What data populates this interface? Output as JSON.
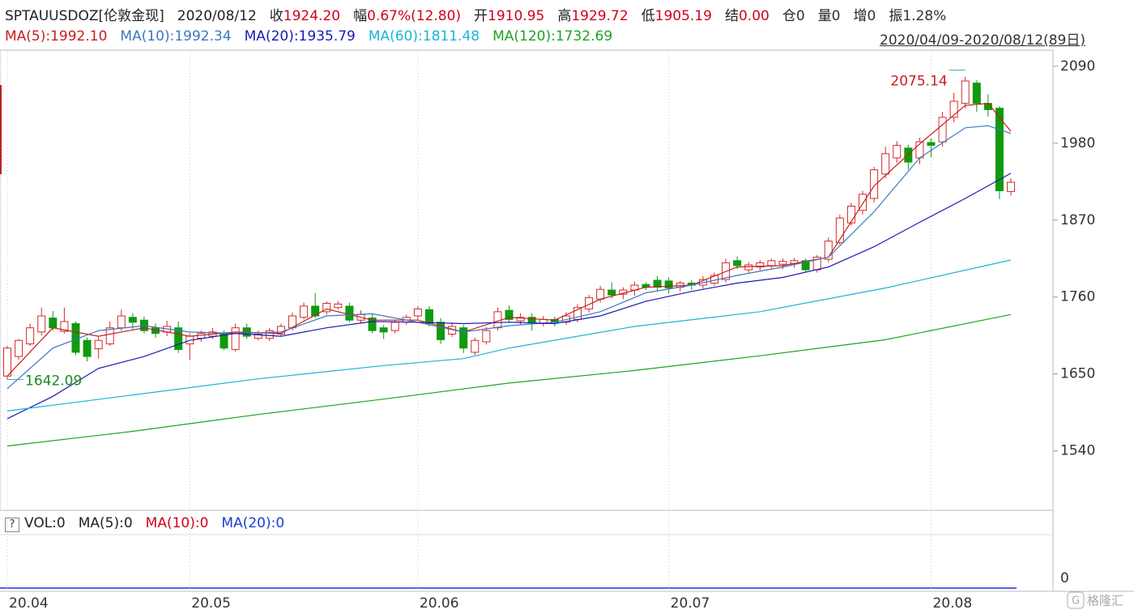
{
  "header": {
    "symbol": "SPTAUUSDOZ[伦敦金现]",
    "date": "2020/08/12",
    "items": [
      {
        "label": "收",
        "value": "1924.20",
        "color": "#d0021b"
      },
      {
        "label": "幅",
        "value": "0.67%(12.80)",
        "color": "#d0021b"
      },
      {
        "label": "开",
        "value": "1910.95",
        "color": "#d0021b"
      },
      {
        "label": "高",
        "value": "1929.72",
        "color": "#d0021b"
      },
      {
        "label": "低",
        "value": "1905.19",
        "color": "#d0021b"
      },
      {
        "label": "结",
        "value": "0.00",
        "color": "#d0021b"
      },
      {
        "label": "仓",
        "value": "0",
        "color": "#333333"
      },
      {
        "label": "量",
        "value": "0",
        "color": "#333333"
      },
      {
        "label": "增",
        "value": "0",
        "color": "#333333"
      },
      {
        "label": "振",
        "value": "1.28%",
        "color": "#333333"
      }
    ]
  },
  "date_range": "2020/04/09-2020/08/12(89日)",
  "watermark": "格隆汇",
  "volume_panel": {
    "legend": [
      {
        "text": "VOL:0",
        "color": "#222222"
      },
      {
        "text": "MA(5):0",
        "color": "#222222"
      },
      {
        "text": "MA(10):0",
        "color": "#d0021b"
      },
      {
        "text": "MA(20):0",
        "color": "#1a3fd6"
      }
    ],
    "yticks": [
      0
    ]
  },
  "chart_data": {
    "type": "candlestick",
    "categories": [
      "20.04",
      null,
      null,
      null,
      null,
      null,
      null,
      null,
      null,
      null,
      null,
      null,
      null,
      null,
      null,
      null,
      "20.05",
      null,
      null,
      null,
      null,
      null,
      null,
      null,
      null,
      null,
      null,
      null,
      null,
      null,
      null,
      null,
      null,
      null,
      null,
      null,
      "20.06",
      null,
      null,
      null,
      null,
      null,
      null,
      null,
      null,
      null,
      null,
      null,
      null,
      null,
      null,
      null,
      null,
      null,
      null,
      null,
      null,
      null,
      "20.07",
      null,
      null,
      null,
      null,
      null,
      null,
      null,
      null,
      null,
      null,
      null,
      null,
      null,
      null,
      null,
      null,
      null,
      null,
      null,
      null,
      null,
      null,
      "20.08",
      null,
      null,
      null,
      null,
      null,
      null,
      null
    ],
    "open": [
      1647,
      1675,
      1693,
      1710,
      1730,
      1711,
      1722,
      1698,
      1686,
      1693,
      1716,
      1731,
      1727,
      1716,
      1710,
      1716,
      1693,
      1701,
      1704,
      1708,
      1685,
      1716,
      1701,
      1701,
      1707,
      1716,
      1731,
      1747,
      1739,
      1745,
      1747,
      1727,
      1730,
      1716,
      1712,
      1724,
      1733,
      1742,
      1724,
      1707,
      1716,
      1681,
      1696,
      1716,
      1741,
      1726,
      1731,
      1722,
      1728,
      1724,
      1728,
      1743,
      1757,
      1770,
      1764,
      1770,
      1778,
      1784,
      1783,
      1774,
      1780,
      1777,
      1780,
      1785,
      1812,
      1799,
      1803,
      1805,
      1807,
      1808,
      1812,
      1799,
      1814,
      1838,
      1866,
      1884,
      1901,
      1936,
      1959,
      1973,
      1959,
      1981,
      1982,
      2017,
      2037,
      2066,
      2037,
      2030,
      1910.95
    ],
    "high": [
      1690,
      1700,
      1722,
      1745,
      1740,
      1745,
      1725,
      1702,
      1703,
      1725,
      1742,
      1737,
      1732,
      1722,
      1726,
      1725,
      1708,
      1712,
      1716,
      1712,
      1722,
      1722,
      1712,
      1716,
      1722,
      1738,
      1752,
      1766,
      1754,
      1754,
      1752,
      1741,
      1735,
      1720,
      1728,
      1735,
      1747,
      1747,
      1730,
      1724,
      1720,
      1702,
      1717,
      1745,
      1748,
      1737,
      1737,
      1733,
      1732,
      1738,
      1750,
      1763,
      1776,
      1781,
      1774,
      1782,
      1781,
      1790,
      1788,
      1783,
      1784,
      1790,
      1795,
      1815,
      1818,
      1810,
      1813,
      1815,
      1815,
      1816,
      1815,
      1820,
      1845,
      1878,
      1895,
      1912,
      1946,
      1975,
      1983,
      1978,
      1988,
      1987,
      2025,
      2052,
      2075.14,
      2070,
      2050,
      2033,
      1929.72
    ],
    "low": [
      1642.09,
      1670,
      1690,
      1705,
      1712,
      1708,
      1677,
      1668,
      1672,
      1690,
      1712,
      1714,
      1708,
      1702,
      1704,
      1680,
      1670,
      1696,
      1700,
      1684,
      1682,
      1700,
      1698,
      1697,
      1704,
      1712,
      1728,
      1730,
      1735,
      1742,
      1724,
      1722,
      1708,
      1700,
      1708,
      1720,
      1728,
      1718,
      1693,
      1703,
      1680,
      1677,
      1692,
      1712,
      1724,
      1720,
      1712,
      1718,
      1718,
      1720,
      1724,
      1738,
      1752,
      1758,
      1757,
      1762,
      1770,
      1768,
      1765,
      1768,
      1770,
      1772,
      1776,
      1781,
      1800,
      1795,
      1798,
      1800,
      1800,
      1802,
      1795,
      1795,
      1810,
      1835,
      1862,
      1878,
      1895,
      1930,
      1952,
      1942,
      1950,
      1960,
      1975,
      2010,
      2030,
      2025,
      2018,
      1900,
      1905.19
    ],
    "close": [
      1687,
      1698,
      1716,
      1733,
      1716,
      1725,
      1681,
      1675,
      1698,
      1716,
      1733,
      1724,
      1712,
      1708,
      1718,
      1685,
      1704,
      1708,
      1710,
      1687,
      1716,
      1704,
      1707,
      1712,
      1718,
      1733,
      1747,
      1733,
      1751,
      1750,
      1727,
      1735,
      1712,
      1710,
      1724,
      1731,
      1743,
      1722,
      1699,
      1718,
      1687,
      1698,
      1712,
      1739,
      1728,
      1731,
      1724,
      1728,
      1724,
      1733,
      1745,
      1759,
      1771,
      1763,
      1770,
      1777,
      1774,
      1774,
      1773,
      1780,
      1777,
      1785,
      1791,
      1809,
      1805,
      1806,
      1809,
      1812,
      1811,
      1812,
      1799,
      1817,
      1840,
      1873,
      1890,
      1907,
      1942,
      1965,
      1977,
      1953,
      1982,
      1977,
      2017,
      2040,
      2069,
      2037,
      2028,
      1912,
      1924.2
    ],
    "up_color": "#d42a2a",
    "down_color": "#0f9a0f",
    "ma_series": [
      {
        "name": "MA(5):1992.10",
        "color": "#c81e1e",
        "x": [
          0,
          4,
          8,
          12,
          16,
          20,
          24,
          28,
          32,
          36,
          40,
          44,
          48,
          52,
          56,
          60,
          64,
          68,
          72,
          76,
          80,
          84,
          86,
          88
        ],
        "values": [
          1647,
          1716,
          1704,
          1716,
          1704,
          1710,
          1708,
          1743,
          1727,
          1727,
          1710,
          1731,
          1727,
          1757,
          1774,
          1777,
          1803,
          1805,
          1817,
          1919,
          1979,
          2034,
          2037,
          1997
        ]
      },
      {
        "name": "MA(10):1992.34",
        "color": "#3a78c3",
        "x": [
          0,
          4,
          8,
          12,
          16,
          20,
          24,
          28,
          32,
          36,
          40,
          44,
          48,
          52,
          56,
          60,
          64,
          68,
          72,
          76,
          80,
          84,
          86,
          88
        ],
        "values": [
          1629,
          1687,
          1712,
          1719,
          1710,
          1708,
          1710,
          1733,
          1736,
          1724,
          1710,
          1719,
          1724,
          1739,
          1766,
          1777,
          1791,
          1803,
          1817,
          1882,
          1959,
          2002,
          2005,
          1994
        ]
      },
      {
        "name": "MA(20):1935.79",
        "color": "#1a1ab8",
        "x": [
          0,
          4,
          8,
          12,
          16,
          20,
          24,
          28,
          32,
          36,
          40,
          44,
          48,
          52,
          56,
          60,
          64,
          68,
          72,
          76,
          80,
          84,
          88
        ],
        "values": [
          1586,
          1618,
          1658,
          1675,
          1698,
          1708,
          1704,
          1716,
          1725,
          1724,
          1722,
          1724,
          1722,
          1733,
          1754,
          1768,
          1780,
          1788,
          1803,
          1832,
          1867,
          1901,
          1937
        ]
      },
      {
        "name": "MA(60):1811.48",
        "color": "#1ab5d6",
        "x": [
          0,
          11,
          22,
          33,
          40,
          44,
          55,
          66,
          77,
          88
        ],
        "values": [
          1597,
          1620,
          1643,
          1662,
          1672,
          1687,
          1718,
          1739,
          1773,
          1813
        ]
      },
      {
        "name": "MA(120):1732.69",
        "color": "#1fa31f",
        "x": [
          0,
          11,
          22,
          33,
          44,
          55,
          66,
          77,
          88
        ],
        "values": [
          1547,
          1568,
          1592,
          1614,
          1637,
          1655,
          1676,
          1699,
          1735
        ]
      }
    ],
    "ylim": [
      1455,
      2113
    ],
    "yticks": [
      1540,
      1650,
      1760,
      1870,
      1980,
      2090
    ],
    "grid": true
  }
}
